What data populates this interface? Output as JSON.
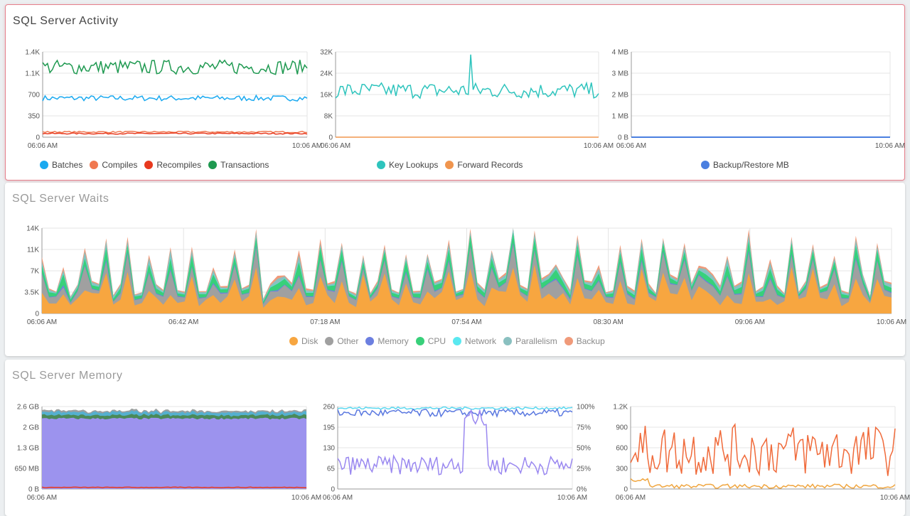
{
  "panels": {
    "activity": {
      "title": "SQL Server Activity"
    },
    "waits": {
      "title": "SQL Server Waits"
    },
    "memory": {
      "title": "SQL Server Memory"
    }
  },
  "chart_data": [
    {
      "id": "activity-batches",
      "type": "line",
      "x_range": [
        "06:06 AM",
        "10:06 AM"
      ],
      "x_ticks": [
        "06:06 AM",
        "10:06 AM"
      ],
      "y_ticks": [
        "0",
        "350",
        "700",
        "1.1K",
        "1.4K"
      ],
      "ylim": [
        0,
        1400
      ],
      "grid": true,
      "series": [
        {
          "name": "Batches",
          "color": "#1aa9f0",
          "base": 640,
          "amp": 45
        },
        {
          "name": "Compiles",
          "color": "#f07850",
          "base": 85,
          "amp": 12
        },
        {
          "name": "Recompiles",
          "color": "#e8391e",
          "base": 60,
          "amp": 10
        },
        {
          "name": "Transactions",
          "color": "#1e9950",
          "base": 1150,
          "amp": 120
        }
      ]
    },
    {
      "id": "activity-lookups",
      "type": "line",
      "x_range": [
        "06:06 AM",
        "10:06 AM"
      ],
      "x_ticks": [
        "06:06 AM",
        "10:06 AM"
      ],
      "y_ticks": [
        "0",
        "8K",
        "16K",
        "24K",
        "32K"
      ],
      "ylim": [
        0,
        32000
      ],
      "grid": true,
      "series": [
        {
          "name": "Key Lookups",
          "color": "#2ec4bd",
          "base": 17500,
          "amp": 3000
        },
        {
          "name": "Forward Records",
          "color": "#f0954e",
          "base": 0,
          "amp": 0
        }
      ]
    },
    {
      "id": "activity-backup",
      "type": "line",
      "x_range": [
        "06:06 AM",
        "10:06 AM"
      ],
      "x_ticks": [
        "06:06 AM",
        "10:06 AM"
      ],
      "y_ticks": [
        "0 B",
        "1 MB",
        "2 MB",
        "3 MB",
        "4 MB"
      ],
      "ylim": [
        0,
        4
      ],
      "grid": true,
      "series": [
        {
          "name": "Backup/Restore MB",
          "color": "#4a7fe0",
          "base": 0,
          "amp": 0
        }
      ]
    },
    {
      "id": "waits",
      "type": "area",
      "x_range": [
        "06:06 AM",
        "10:06 AM"
      ],
      "x_ticks": [
        "06:06 AM",
        "06:42 AM",
        "07:18 AM",
        "07:54 AM",
        "08:30 AM",
        "09:06 AM",
        "10:06 AM"
      ],
      "y_ticks": [
        "0",
        "3.5K",
        "7K",
        "11K",
        "14K"
      ],
      "ylim": [
        0,
        14000
      ],
      "grid": true,
      "series": [
        {
          "name": "Disk",
          "color": "#f7a640"
        },
        {
          "name": "Other",
          "color": "#a0a0a0"
        },
        {
          "name": "Memory",
          "color": "#6c7fe0"
        },
        {
          "name": "CPU",
          "color": "#38d07a"
        },
        {
          "name": "Network",
          "color": "#5ae8f0"
        },
        {
          "name": "Parallelism",
          "color": "#8ac0c0"
        },
        {
          "name": "Backup",
          "color": "#f09a7a"
        }
      ]
    },
    {
      "id": "memory-size",
      "type": "area",
      "x_range": [
        "06:06 AM",
        "10:06 AM"
      ],
      "x_ticks": [
        "06:06 AM",
        "10:06 AM"
      ],
      "y_ticks": [
        "0 B",
        "650 MB",
        "1.3 GB",
        "2 GB",
        "2.6 GB"
      ],
      "ylim": [
        0,
        2.6
      ],
      "grid": true
    },
    {
      "id": "memory-pages",
      "type": "line",
      "x_range": [
        "06:06 AM",
        "10:06 AM"
      ],
      "x_ticks": [
        "06:06 AM",
        "10:06 AM"
      ],
      "y_ticks": [
        "0",
        "65",
        "130",
        "195",
        "260"
      ],
      "y2_ticks": [
        "0%",
        "25%",
        "50%",
        "75%",
        "100%"
      ],
      "ylim": [
        0,
        260
      ],
      "grid": true
    },
    {
      "id": "memory-grants",
      "type": "line",
      "x_range": [
        "06:06 AM",
        "10:06 AM"
      ],
      "x_ticks": [
        "06:06 AM",
        "10:06 AM"
      ],
      "y_ticks": [
        "0",
        "300",
        "600",
        "900",
        "1.2K"
      ],
      "ylim": [
        0,
        1200
      ],
      "grid": true
    }
  ],
  "legends": {
    "activity1": [
      {
        "label": "Batches",
        "color": "#1aa9f0"
      },
      {
        "label": "Compiles",
        "color": "#f07850"
      },
      {
        "label": "Recompiles",
        "color": "#e8391e"
      },
      {
        "label": "Transactions",
        "color": "#1e9950"
      }
    ],
    "activity2": [
      {
        "label": "Key Lookups",
        "color": "#2ec4bd"
      },
      {
        "label": "Forward Records",
        "color": "#f0954e"
      }
    ],
    "activity3": [
      {
        "label": "Backup/Restore MB",
        "color": "#4a7fe0"
      }
    ],
    "waits": [
      {
        "label": "Disk",
        "color": "#f7a640"
      },
      {
        "label": "Other",
        "color": "#a0a0a0"
      },
      {
        "label": "Memory",
        "color": "#6c7fe0"
      },
      {
        "label": "CPU",
        "color": "#38d07a"
      },
      {
        "label": "Network",
        "color": "#5ae8f0"
      },
      {
        "label": "Parallelism",
        "color": "#8ac0c0"
      },
      {
        "label": "Backup",
        "color": "#f09a7a"
      }
    ]
  }
}
